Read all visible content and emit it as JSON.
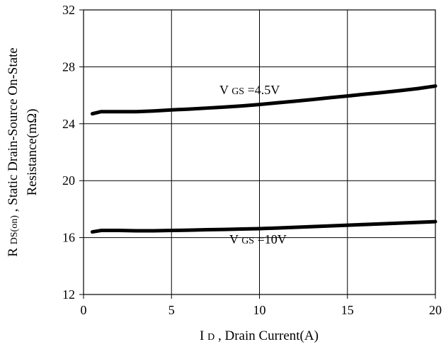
{
  "chart_data": {
    "type": "line",
    "title": "",
    "xlabel": {
      "main": "I",
      "sub": "D",
      "rest": ", Drain Current(A)"
    },
    "ylabel": {
      "line1_main": "R",
      "line1_sub": "DS(on)",
      "line1_rest": ", Static Drain-Source On-State",
      "line2": "Resistance(mΩ)"
    },
    "xlim": [
      0,
      20
    ],
    "ylim": [
      12,
      32
    ],
    "x_ticks": [
      0,
      5,
      10,
      15,
      20
    ],
    "y_ticks": [
      12,
      16,
      20,
      24,
      28,
      32
    ],
    "grid": true,
    "series": [
      {
        "name": {
          "main": "V",
          "sub": "GS",
          "rest": "=4.5V"
        },
        "x": [
          0.5,
          1,
          2,
          3,
          4,
          5,
          6,
          7,
          8,
          9,
          10,
          11,
          12,
          13,
          14,
          15,
          16,
          17,
          18,
          19,
          20
        ],
        "y": [
          24.7,
          24.85,
          24.85,
          24.85,
          24.9,
          24.97,
          25.03,
          25.1,
          25.17,
          25.25,
          25.35,
          25.47,
          25.58,
          25.7,
          25.83,
          25.95,
          26.08,
          26.2,
          26.33,
          26.47,
          26.65
        ]
      },
      {
        "name": {
          "main": "V",
          "sub": "GS",
          "rest": "=10V"
        },
        "x": [
          0.5,
          1,
          2,
          3,
          4,
          5,
          6,
          7,
          8,
          9,
          10,
          11,
          12,
          13,
          14,
          15,
          16,
          17,
          18,
          19,
          20
        ],
        "y": [
          16.4,
          16.5,
          16.5,
          16.48,
          16.48,
          16.5,
          16.52,
          16.55,
          16.57,
          16.6,
          16.63,
          16.67,
          16.72,
          16.77,
          16.82,
          16.87,
          16.92,
          16.97,
          17.02,
          17.07,
          17.12
        ]
      }
    ],
    "line_color": "#000000"
  }
}
